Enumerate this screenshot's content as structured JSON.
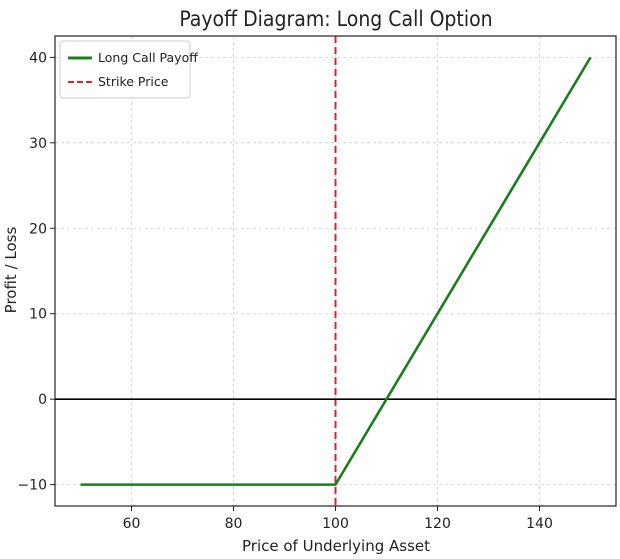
{
  "chart_data": {
    "type": "line",
    "title": "Payoff Diagram: Long Call Option",
    "xlabel": "Price of Underlying Asset",
    "ylabel": "Profit / Loss",
    "xlim": [
      45,
      155
    ],
    "ylim": [
      -12.5,
      42.5
    ],
    "xticks": [
      60,
      80,
      100,
      120,
      140
    ],
    "yticks": [
      -10,
      0,
      10,
      20,
      30,
      40
    ],
    "ytick_labels": [
      "−10",
      "0",
      "10",
      "20",
      "30",
      "40"
    ],
    "grid": true,
    "legend_position": "top-left",
    "series": [
      {
        "name": "Long Call Payoff",
        "color": "#1a7f1a",
        "style": "solid",
        "x": [
          50,
          100,
          150
        ],
        "y": [
          -10,
          -10,
          40
        ]
      }
    ],
    "reference_lines": [
      {
        "name": "Strike Price",
        "orientation": "vertical",
        "value": 100,
        "color": "#d62728",
        "style": "dashed"
      },
      {
        "name": "",
        "orientation": "horizontal",
        "value": 0,
        "color": "#000000",
        "style": "solid"
      }
    ]
  }
}
